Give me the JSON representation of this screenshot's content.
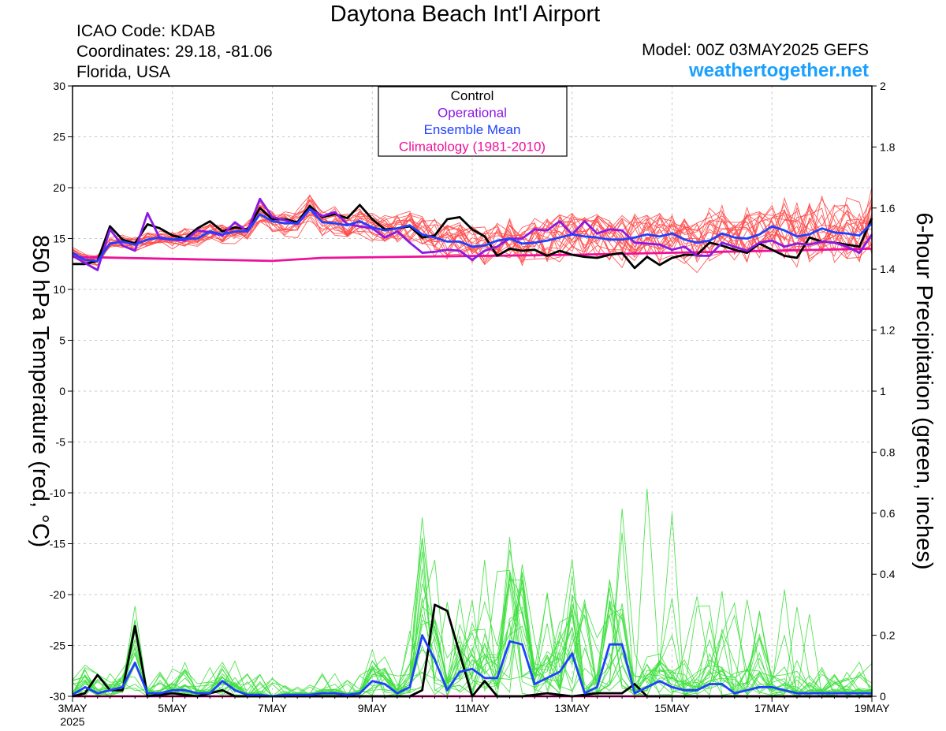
{
  "header": {
    "title": "Daytona Beach Int'l Airport",
    "icao": "ICAO Code: KDAB",
    "coordinates": "Coordinates: 29.18, -81.06",
    "region": "Florida, USA",
    "model": "Model: 00Z 03MAY2025 GEFS",
    "site": "weathertogether.net"
  },
  "colors": {
    "member_temp": "#ff4a4a",
    "member_precip": "#3fe03f",
    "control": "#000000",
    "operational": "#8a19e6",
    "ensemble_mean": "#2040ff",
    "climatology": "#ee1199"
  },
  "chart_data": {
    "type": "line",
    "title": "Daytona Beach Int'l Airport",
    "ylabel_left": "850 hPa Temperature (red, °C)",
    "ylabel_right": "6-hour Precipitation (green, inches)",
    "ylim_left": [
      -30,
      30
    ],
    "ylim_right": [
      0,
      2
    ],
    "yticks_left": [
      "30",
      "25",
      "20",
      "15",
      "10",
      "5",
      "0",
      "-5",
      "-10",
      "-15",
      "-20",
      "-25",
      "-30"
    ],
    "yticks_right": [
      "2",
      "1.8",
      "1.6",
      "1.4",
      "1.2",
      "1",
      "0.8",
      "0.6",
      "0.4",
      "0.2",
      "0"
    ],
    "xlim": [
      0,
      16
    ],
    "xticks": [
      {
        "x": 0,
        "label": "3MAY",
        "sub": "2025"
      },
      {
        "x": 2,
        "label": "5MAY",
        "sub": ""
      },
      {
        "x": 4,
        "label": "7MAY",
        "sub": ""
      },
      {
        "x": 6,
        "label": "9MAY",
        "sub": ""
      },
      {
        "x": 8,
        "label": "11MAY",
        "sub": ""
      },
      {
        "x": 10,
        "label": "13MAY",
        "sub": ""
      },
      {
        "x": 12,
        "label": "15MAY",
        "sub": ""
      },
      {
        "x": 14,
        "label": "17MAY",
        "sub": ""
      },
      {
        "x": 16,
        "label": "19MAY",
        "sub": ""
      }
    ],
    "grid": true,
    "legend_position": "top-center",
    "legend": [
      "Control",
      "Operational",
      "Ensemble Mean",
      "Climatology (1981-2010)"
    ],
    "series": [
      {
        "name": "Control",
        "axis": "temperature",
        "x": [
          0,
          0.25,
          0.5,
          0.75,
          1,
          1.25,
          1.5,
          1.75,
          2,
          2.25,
          2.5,
          2.75,
          3,
          3.25,
          3.5,
          3.75,
          4,
          4.25,
          4.5,
          4.75,
          5,
          5.25,
          5.5,
          5.75,
          6,
          6.25,
          6.5,
          6.75,
          7,
          7.25,
          7.5,
          7.75,
          8,
          8.25,
          8.5,
          8.75,
          9,
          9.25,
          9.5,
          9.75,
          10,
          10.25,
          10.5,
          10.75,
          11,
          11.25,
          11.5,
          11.75,
          12,
          12.25,
          12.5,
          12.75,
          13,
          13.25,
          13.5,
          13.75,
          14,
          14.25,
          14.5,
          14.75,
          15,
          15.25,
          15.5,
          15.75,
          16
        ],
        "values": [
          12.5,
          12.5,
          12.8,
          16.2,
          14.9,
          14.5,
          16.4,
          16.0,
          15.3,
          15.0,
          16.0,
          16.7,
          15.7,
          16.1,
          15.9,
          18.0,
          16.9,
          16.9,
          16.6,
          18.2,
          17.1,
          17.4,
          17.0,
          18.3,
          16.9,
          15.9,
          16.0,
          16.2,
          15.1,
          15.3,
          16.9,
          17.1,
          15.9,
          15.2,
          13.3,
          14.0,
          13.8,
          13.9,
          13.3,
          13.8,
          13.4,
          13.2,
          13.1,
          13.4,
          13.6,
          12.1,
          13.2,
          12.4,
          13.1,
          13.4,
          13.4,
          14.6,
          14.3,
          13.9,
          13.6,
          14.5,
          13.9,
          13.3,
          13.1,
          15.1,
          14.7,
          14.6,
          14.4,
          14.2,
          17.0
        ]
      },
      {
        "name": "Operational",
        "axis": "temperature",
        "x": [
          0,
          0.25,
          0.5,
          0.75,
          1,
          1.25,
          1.5,
          1.75,
          2,
          2.25,
          2.5,
          2.75,
          3,
          3.25,
          3.5,
          3.75,
          4,
          4.25,
          4.5,
          4.75,
          5,
          5.25,
          5.5,
          5.75,
          6,
          6.25,
          6.5,
          6.75,
          7,
          7.25,
          7.5,
          7.75,
          8,
          8.25,
          8.5,
          8.75,
          9,
          9.25,
          9.5,
          9.75,
          10,
          10.25,
          10.5,
          10.75,
          11,
          11.25,
          11.5,
          11.75,
          12,
          12.25,
          12.5,
          12.75,
          13,
          13.25,
          13.5,
          13.75,
          14,
          14.25,
          14.5,
          14.75,
          15,
          15.25,
          15.5,
          15.75,
          16
        ],
        "values": [
          13.3,
          12.6,
          11.9,
          15.9,
          14.3,
          13.8,
          17.5,
          15.0,
          14.9,
          14.8,
          15.8,
          15.6,
          15.3,
          16.6,
          15.7,
          18.9,
          17.1,
          16.8,
          16.4,
          17.9,
          17.2,
          17.6,
          16.4,
          16.2,
          16.0,
          15.1,
          15.7,
          14.6,
          13.6,
          13.7,
          13.9,
          13.8,
          12.9,
          13.8,
          14.2,
          15.0,
          15.0,
          15.9,
          15.8,
          16.7,
          15.4,
          16.7,
          15.5,
          15.9,
          15.8,
          14.6,
          14.5,
          14.4,
          13.9,
          14.2,
          13.3,
          13.3,
          14.6,
          14.2,
          13.8,
          14.6,
          14.8,
          14.2,
          14.5,
          14.4,
          14.7,
          14.6,
          14.2,
          13.6,
          15.4
        ]
      },
      {
        "name": "Ensemble Mean",
        "axis": "temperature",
        "x": [
          0,
          0.25,
          0.5,
          0.75,
          1,
          1.25,
          1.5,
          1.75,
          2,
          2.25,
          2.5,
          2.75,
          3,
          3.25,
          3.5,
          3.75,
          4,
          4.25,
          4.5,
          4.75,
          5,
          5.25,
          5.5,
          5.75,
          6,
          6.25,
          6.5,
          6.75,
          7,
          7.25,
          7.5,
          7.75,
          8,
          8.25,
          8.5,
          8.75,
          9,
          9.25,
          9.5,
          9.75,
          10,
          10.25,
          10.5,
          10.75,
          11,
          11.25,
          11.5,
          11.75,
          12,
          12.25,
          12.5,
          12.75,
          13,
          13.25,
          13.5,
          13.75,
          14,
          14.25,
          14.5,
          14.75,
          15,
          15.25,
          15.5,
          15.75,
          16
        ],
        "values": [
          13.6,
          12.9,
          12.8,
          14.5,
          14.7,
          14.4,
          14.9,
          15.1,
          14.9,
          15.0,
          15.0,
          15.7,
          15.4,
          15.7,
          15.7,
          17.4,
          16.7,
          16.5,
          16.5,
          17.9,
          16.6,
          16.5,
          16.3,
          16.7,
          16.1,
          15.8,
          16.0,
          16.3,
          15.4,
          15.1,
          14.7,
          14.7,
          14.2,
          14.3,
          14.8,
          15.0,
          14.5,
          14.6,
          14.8,
          15.1,
          15.4,
          15.2,
          15.1,
          14.9,
          14.9,
          15.1,
          15.4,
          15.2,
          15.5,
          14.9,
          14.6,
          14.8,
          15.5,
          15.1,
          15.0,
          15.4,
          16.2,
          15.8,
          15.2,
          15.4,
          16.0,
          15.6,
          15.5,
          15.3,
          16.5
        ]
      },
      {
        "name": "Climatology (1981-2010)",
        "axis": "temperature",
        "x": [
          0,
          4,
          5,
          10,
          16
        ],
        "values": [
          13.2,
          12.8,
          13.1,
          13.4,
          14.0
        ]
      },
      {
        "name": "Control",
        "axis": "precipitation",
        "x": [
          0,
          0.25,
          0.5,
          0.75,
          1,
          1.25,
          1.5,
          2,
          2.5,
          3,
          3.25,
          3.5,
          4,
          5,
          6,
          6.5,
          6.75,
          7,
          7.25,
          7.5,
          8,
          8.25,
          8.5,
          9,
          9.5,
          10,
          10.5,
          11,
          11.25,
          11.5,
          12,
          13,
          14,
          15,
          16
        ],
        "values": [
          0.0,
          0.01,
          0.07,
          0.02,
          0.02,
          0.23,
          0.0,
          0.01,
          0.0,
          0.02,
          0.0,
          0.0,
          0.0,
          0.0,
          0.0,
          0.0,
          0.0,
          0.02,
          0.3,
          0.28,
          0.0,
          0.05,
          0.0,
          0.0,
          0.01,
          0.0,
          0.01,
          0.01,
          0.04,
          0.0,
          0.0,
          0.0,
          0.0,
          0.0,
          0.0
        ]
      },
      {
        "name": "Ensemble Mean",
        "axis": "precipitation",
        "x": [
          0,
          0.25,
          0.5,
          0.75,
          1,
          1.25,
          1.5,
          1.75,
          2,
          2.25,
          2.5,
          2.75,
          3,
          3.25,
          3.5,
          3.75,
          4,
          4.25,
          4.5,
          4.75,
          5,
          5.25,
          5.5,
          5.75,
          6,
          6.25,
          6.5,
          6.75,
          7,
          7.25,
          7.5,
          7.75,
          8,
          8.25,
          8.5,
          8.75,
          9,
          9.25,
          9.5,
          9.75,
          10,
          10.25,
          10.5,
          10.75,
          11,
          11.25,
          11.5,
          11.75,
          12,
          12.25,
          12.5,
          12.75,
          13,
          13.25,
          13.5,
          13.75,
          14,
          14.25,
          14.5,
          14.75,
          15,
          15.25,
          15.5,
          15.75,
          16
        ],
        "values": [
          0.005,
          0.03,
          0.01,
          0.02,
          0.03,
          0.11,
          0.01,
          0.01,
          0.02,
          0.02,
          0.01,
          0.01,
          0.05,
          0.02,
          0.005,
          0.005,
          0.0,
          0.005,
          0.005,
          0.005,
          0.01,
          0.01,
          0.005,
          0.01,
          0.05,
          0.04,
          0.01,
          0.03,
          0.2,
          0.12,
          0.02,
          0.08,
          0.09,
          0.06,
          0.06,
          0.18,
          0.17,
          0.04,
          0.06,
          0.08,
          0.14,
          0.01,
          0.03,
          0.17,
          0.17,
          0.01,
          0.03,
          0.05,
          0.03,
          0.02,
          0.02,
          0.04,
          0.04,
          0.01,
          0.02,
          0.03,
          0.03,
          0.02,
          0.01,
          0.01,
          0.01,
          0.01,
          0.01,
          0.01,
          0.01
        ]
      },
      {
        "name": "Climatology (1981-2010)",
        "axis": "precipitation",
        "x": [
          0,
          16
        ],
        "values": [
          0.0,
          0.0
        ]
      }
    ]
  }
}
